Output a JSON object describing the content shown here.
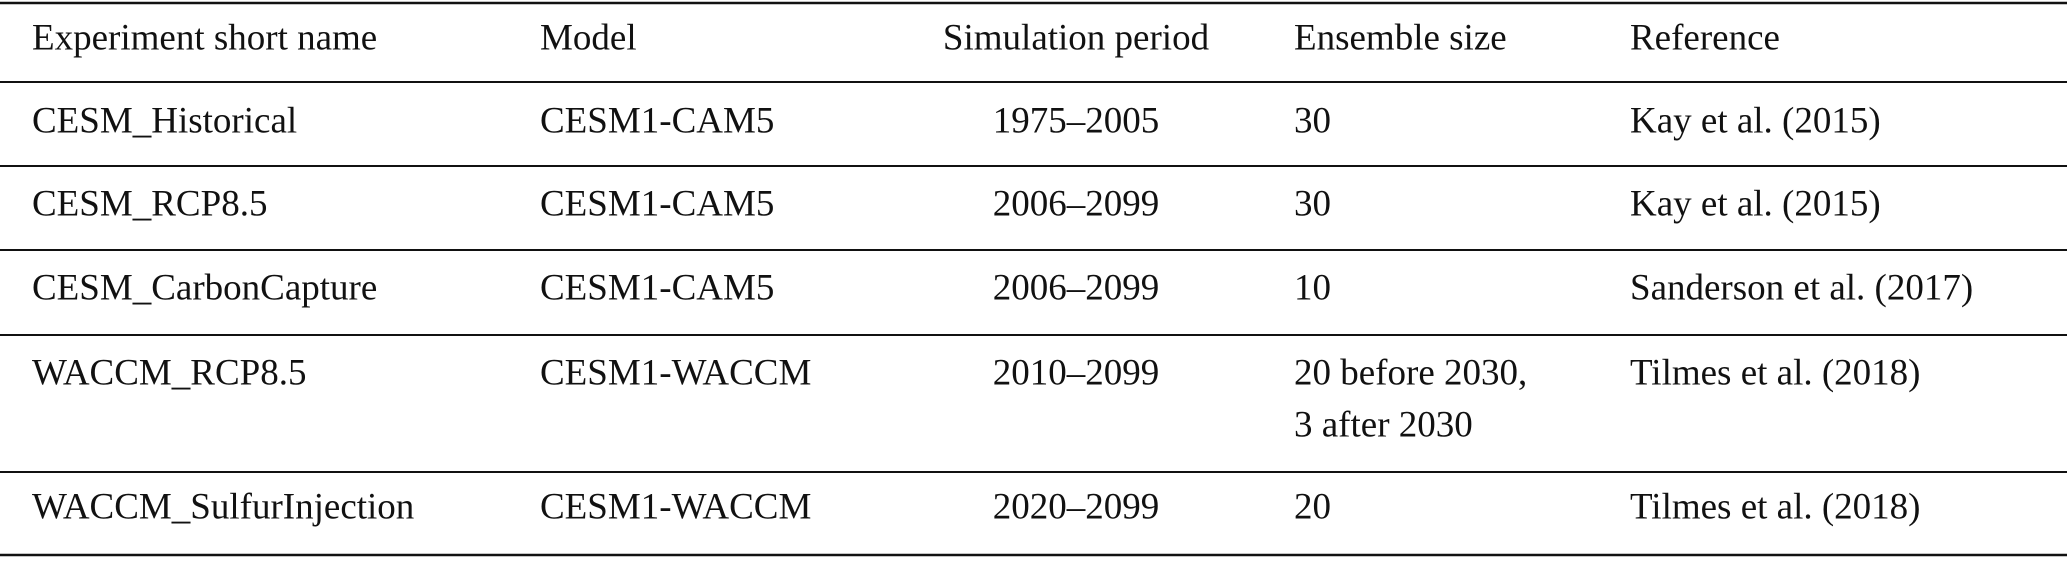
{
  "table": {
    "header": [
      "Experiment short name",
      "Model",
      "Simulation period",
      "Ensemble size",
      "Reference"
    ],
    "rows": [
      [
        "CESM_Historical",
        "CESM1-CAM5",
        "1975–2005",
        "30",
        "Kay et al. (2015)"
      ],
      [
        "CESM_RCP8.5",
        "CESM1-CAM5",
        "2006–2099",
        "30",
        "Kay et al. (2015)"
      ],
      [
        "CESM_CarbonCapture",
        "CESM1-CAM5",
        "2006–2099",
        "10",
        "Sanderson et al. (2017)"
      ],
      [
        "WACCM_RCP8.5",
        "CESM1-WACCM",
        "2010–2099",
        [
          "20 before 2030,",
          "3 after 2030"
        ],
        "Tilmes et al. (2018)"
      ],
      [
        "WACCM_SulfurInjection",
        "CESM1-WACCM",
        "2020–2099",
        "20",
        "Tilmes et al. (2018)"
      ]
    ]
  }
}
